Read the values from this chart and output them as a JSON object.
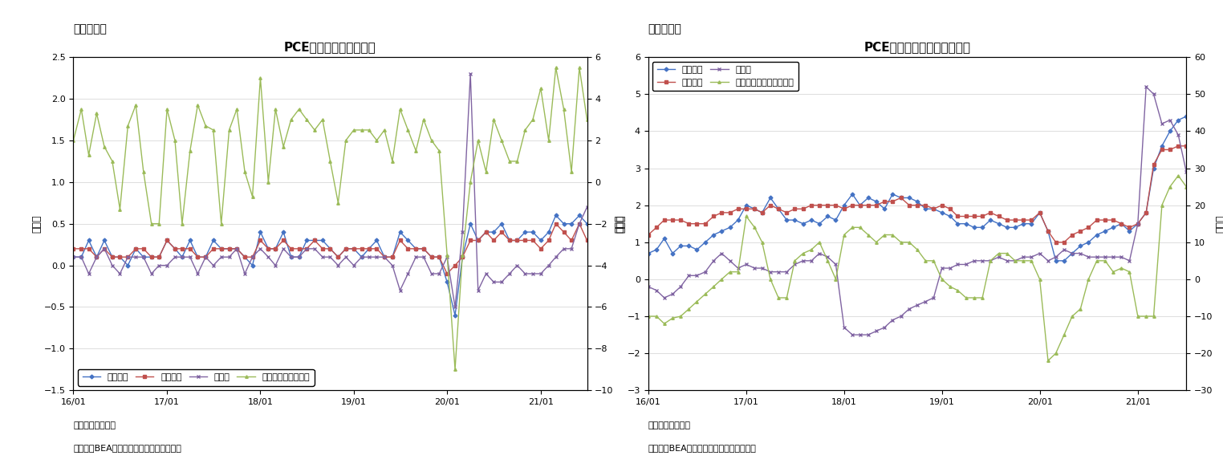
{
  "fig6_title": "PCE価格指数（前月比）",
  "fig7_title": "PCE価格指数（前年同月比）",
  "label_fig6": "（図表６）",
  "label_fig7": "（図表７）",
  "note_line1": "（注）季節調整済",
  "note_line2": "（資料）BEAよりニッセイ基礎研究所作成",
  "ylabel_left": "（％）",
  "ylabel_right": "（％）",
  "legend_total": "総合指数",
  "legend_core": "コア指数",
  "legend_food": "食料品",
  "legend_energy6": "エネルギー（右軸）",
  "legend_energy7": "エネルギー関連（右軸）",
  "x_labels": [
    "16/01",
    "17/01",
    "18/01",
    "19/01",
    "20/01",
    "21/01"
  ],
  "fig6_ylim": [
    -1.5,
    2.5
  ],
  "fig6_ylim_r": [
    -10,
    6
  ],
  "fig7_ylim": [
    -3,
    6
  ],
  "fig7_ylim_r": [
    -30,
    60
  ],
  "colors": {
    "total": "#4472C4",
    "core": "#C0504D",
    "food": "#8064A2",
    "energy": "#9BBB59"
  },
  "fig6_total": [
    0.1,
    0.1,
    0.3,
    0.1,
    0.3,
    0.1,
    0.1,
    0.0,
    0.2,
    0.1,
    0.1,
    0.1,
    0.3,
    0.2,
    0.1,
    0.3,
    0.1,
    0.1,
    0.3,
    0.2,
    0.2,
    0.2,
    0.1,
    0.0,
    0.4,
    0.2,
    0.2,
    0.4,
    0.1,
    0.1,
    0.3,
    0.3,
    0.3,
    0.2,
    0.1,
    0.2,
    0.2,
    0.1,
    0.2,
    0.3,
    0.1,
    0.1,
    0.4,
    0.3,
    0.2,
    0.2,
    0.1,
    0.1,
    -0.2,
    -0.6,
    0.1,
    0.5,
    0.3,
    0.4,
    0.4,
    0.5,
    0.3,
    0.3,
    0.4,
    0.4,
    0.3,
    0.4,
    0.6,
    0.5,
    0.5,
    0.6,
    0.5
  ],
  "fig6_core": [
    0.2,
    0.2,
    0.2,
    0.1,
    0.2,
    0.1,
    0.1,
    0.1,
    0.2,
    0.2,
    0.1,
    0.1,
    0.3,
    0.2,
    0.2,
    0.2,
    0.1,
    0.1,
    0.2,
    0.2,
    0.2,
    0.2,
    0.1,
    0.1,
    0.3,
    0.2,
    0.2,
    0.3,
    0.2,
    0.2,
    0.2,
    0.3,
    0.2,
    0.2,
    0.1,
    0.2,
    0.2,
    0.2,
    0.2,
    0.2,
    0.1,
    0.1,
    0.3,
    0.2,
    0.2,
    0.2,
    0.1,
    0.1,
    -0.1,
    0.0,
    0.1,
    0.3,
    0.3,
    0.4,
    0.3,
    0.4,
    0.3,
    0.3,
    0.3,
    0.3,
    0.2,
    0.3,
    0.5,
    0.4,
    0.3,
    0.5,
    0.3
  ],
  "fig6_food": [
    0.1,
    0.1,
    -0.1,
    0.1,
    0.2,
    0.0,
    -0.1,
    0.1,
    0.1,
    0.1,
    -0.1,
    0.0,
    0.0,
    0.1,
    0.1,
    0.1,
    -0.1,
    0.1,
    0.0,
    0.1,
    0.1,
    0.2,
    -0.1,
    0.1,
    0.2,
    0.1,
    0.0,
    0.2,
    0.1,
    0.1,
    0.2,
    0.2,
    0.1,
    0.1,
    0.0,
    0.1,
    0.0,
    0.1,
    0.1,
    0.1,
    0.1,
    0.0,
    -0.3,
    -0.1,
    0.1,
    0.1,
    -0.1,
    -0.1,
    0.1,
    -0.5,
    0.4,
    2.3,
    -0.3,
    -0.1,
    -0.2,
    -0.2,
    -0.1,
    0.0,
    -0.1,
    -0.1,
    -0.1,
    0.0,
    0.1,
    0.2,
    0.2,
    0.5,
    0.7
  ],
  "fig6_energy": [
    2.0,
    3.5,
    1.3,
    3.3,
    1.7,
    1.0,
    -1.3,
    2.7,
    3.7,
    0.5,
    -2.0,
    -2.0,
    3.5,
    2.0,
    -2.0,
    1.5,
    3.7,
    2.7,
    2.5,
    -2.0,
    2.5,
    3.5,
    0.5,
    -0.7,
    5.0,
    0.0,
    3.5,
    1.7,
    3.0,
    3.5,
    3.0,
    2.5,
    3.0,
    1.0,
    -1.0,
    2.0,
    2.5,
    2.5,
    2.5,
    2.0,
    2.5,
    1.0,
    3.5,
    2.5,
    1.5,
    3.0,
    2.0,
    1.5,
    -3.5,
    -9.0,
    -3.5,
    0.0,
    2.0,
    0.5,
    3.0,
    2.0,
    1.0,
    1.0,
    2.5,
    3.0,
    4.5,
    2.0,
    5.5,
    3.5,
    0.5,
    5.5,
    3.0
  ],
  "fig7_total": [
    0.7,
    0.8,
    1.1,
    0.7,
    0.9,
    0.9,
    0.8,
    1.0,
    1.2,
    1.3,
    1.4,
    1.6,
    2.0,
    1.9,
    1.8,
    2.2,
    1.9,
    1.6,
    1.6,
    1.5,
    1.6,
    1.5,
    1.7,
    1.6,
    2.0,
    2.3,
    2.0,
    2.2,
    2.1,
    1.9,
    2.3,
    2.2,
    2.2,
    2.1,
    1.9,
    1.9,
    1.8,
    1.7,
    1.5,
    1.5,
    1.4,
    1.4,
    1.6,
    1.5,
    1.4,
    1.4,
    1.5,
    1.5,
    1.8,
    1.3,
    0.5,
    0.5,
    0.7,
    0.9,
    1.0,
    1.2,
    1.3,
    1.4,
    1.5,
    1.3,
    1.5,
    1.8,
    3.0,
    3.6,
    4.0,
    4.3,
    4.4
  ],
  "fig7_core": [
    1.2,
    1.4,
    1.6,
    1.6,
    1.6,
    1.5,
    1.5,
    1.5,
    1.7,
    1.8,
    1.8,
    1.9,
    1.9,
    1.9,
    1.8,
    2.0,
    1.9,
    1.8,
    1.9,
    1.9,
    2.0,
    2.0,
    2.0,
    2.0,
    1.9,
    2.0,
    2.0,
    2.0,
    2.0,
    2.1,
    2.1,
    2.2,
    2.0,
    2.0,
    2.0,
    1.9,
    2.0,
    1.9,
    1.7,
    1.7,
    1.7,
    1.7,
    1.8,
    1.7,
    1.6,
    1.6,
    1.6,
    1.6,
    1.8,
    1.3,
    1.0,
    1.0,
    1.2,
    1.3,
    1.4,
    1.6,
    1.6,
    1.6,
    1.5,
    1.4,
    1.5,
    1.8,
    3.1,
    3.5,
    3.5,
    3.6,
    3.6
  ],
  "fig7_food": [
    -0.2,
    -0.3,
    -0.5,
    -0.4,
    -0.2,
    0.1,
    0.1,
    0.2,
    0.5,
    0.7,
    0.5,
    0.3,
    0.4,
    0.3,
    0.3,
    0.2,
    0.2,
    0.2,
    0.4,
    0.5,
    0.5,
    0.7,
    0.6,
    0.4,
    -1.3,
    -1.5,
    -1.5,
    -1.5,
    -1.4,
    -1.3,
    -1.1,
    -1.0,
    -0.8,
    -0.7,
    -0.6,
    -0.5,
    0.3,
    0.3,
    0.4,
    0.4,
    0.5,
    0.5,
    0.5,
    0.6,
    0.5,
    0.5,
    0.6,
    0.6,
    0.7,
    0.5,
    0.6,
    0.8,
    0.7,
    0.7,
    0.6,
    0.6,
    0.6,
    0.6,
    0.6,
    0.5,
    1.5,
    5.2,
    5.0,
    4.2,
    4.3,
    3.9,
    2.9
  ],
  "fig7_energy": [
    -10.0,
    -10.0,
    -12.0,
    -10.5,
    -10.0,
    -8.0,
    -6.0,
    -4.0,
    -2.0,
    0.0,
    2.0,
    2.0,
    17.0,
    14.0,
    10.0,
    0.0,
    -5.0,
    -5.0,
    5.0,
    7.0,
    8.0,
    10.0,
    5.0,
    0.0,
    12.0,
    14.0,
    14.0,
    12.0,
    10.0,
    12.0,
    12.0,
    10.0,
    10.0,
    8.0,
    5.0,
    5.0,
    0.0,
    -2.0,
    -3.0,
    -5.0,
    -5.0,
    -5.0,
    5.0,
    7.0,
    7.0,
    5.0,
    5.0,
    5.0,
    0.0,
    -22.0,
    -20.0,
    -15.0,
    -10.0,
    -8.0,
    0.0,
    5.0,
    5.0,
    2.0,
    3.0,
    2.0,
    -10.0,
    -10.0,
    -10.0,
    20.0,
    25.0,
    28.0,
    25.0
  ]
}
